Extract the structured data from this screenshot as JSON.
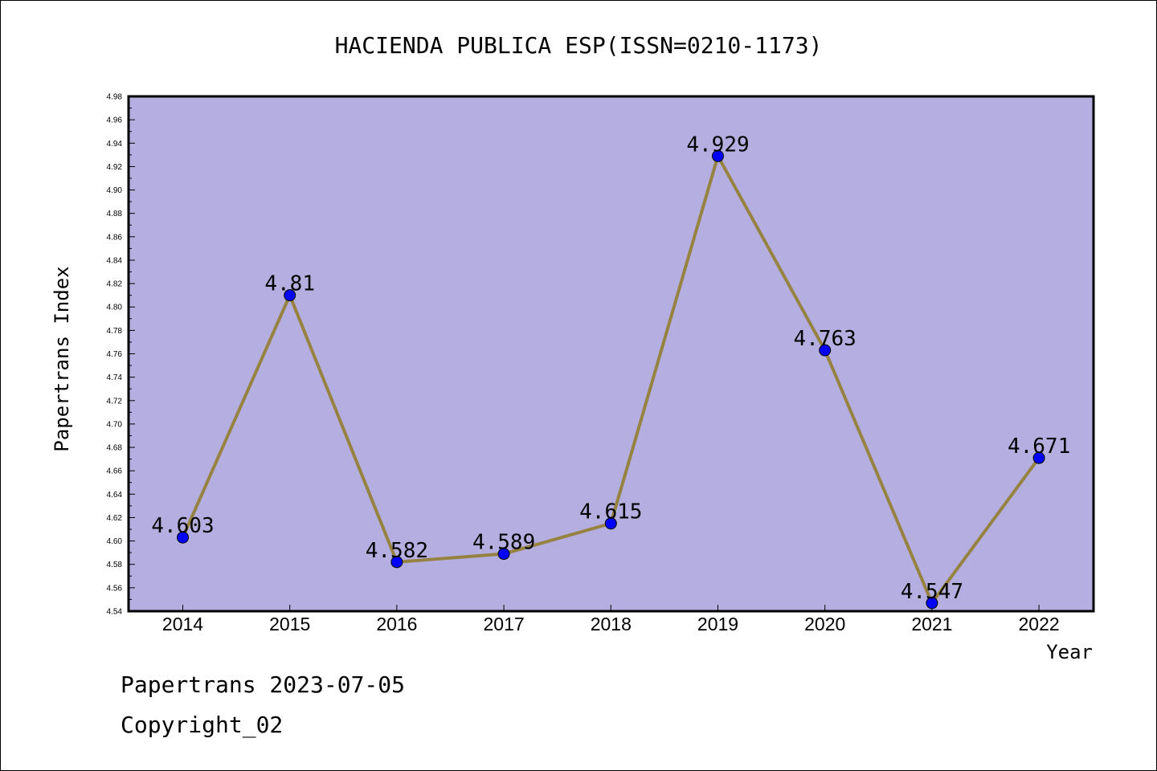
{
  "chart_data": {
    "type": "line",
    "title": "HACIENDA PUBLICA ESP(ISSN=0210-1173)",
    "xlabel": "Year",
    "ylabel": "Papertrans Index",
    "categories": [
      "2014",
      "2015",
      "2016",
      "2017",
      "2018",
      "2019",
      "2020",
      "2021",
      "2022"
    ],
    "series": [
      {
        "values": [
          4.603,
          4.81,
          4.582,
          4.589,
          4.615,
          4.929,
          4.763,
          4.547,
          4.671
        ]
      }
    ],
    "data_labels": [
      "4.603",
      "4.81",
      "4.582",
      "4.589",
      "4.615",
      "4.929",
      "4.763",
      "4.547",
      "4.671"
    ],
    "ylim": [
      4.54,
      4.98
    ],
    "yticks": [
      "4.54",
      "4.56",
      "4.58",
      "4.60",
      "4.62",
      "4.64",
      "4.66",
      "4.68",
      "4.70",
      "4.72",
      "4.74",
      "4.76",
      "4.78",
      "4.80",
      "4.82",
      "4.84",
      "4.86",
      "4.88",
      "4.90",
      "4.92",
      "4.94",
      "4.96",
      "4.98"
    ],
    "grid": false,
    "colors": {
      "plot_background": "#b5aee0",
      "line": "#968341",
      "marker": "#0000ff"
    }
  },
  "footer": {
    "line1": "Papertrans 2023-07-05",
    "line2": "Copyright_02"
  }
}
